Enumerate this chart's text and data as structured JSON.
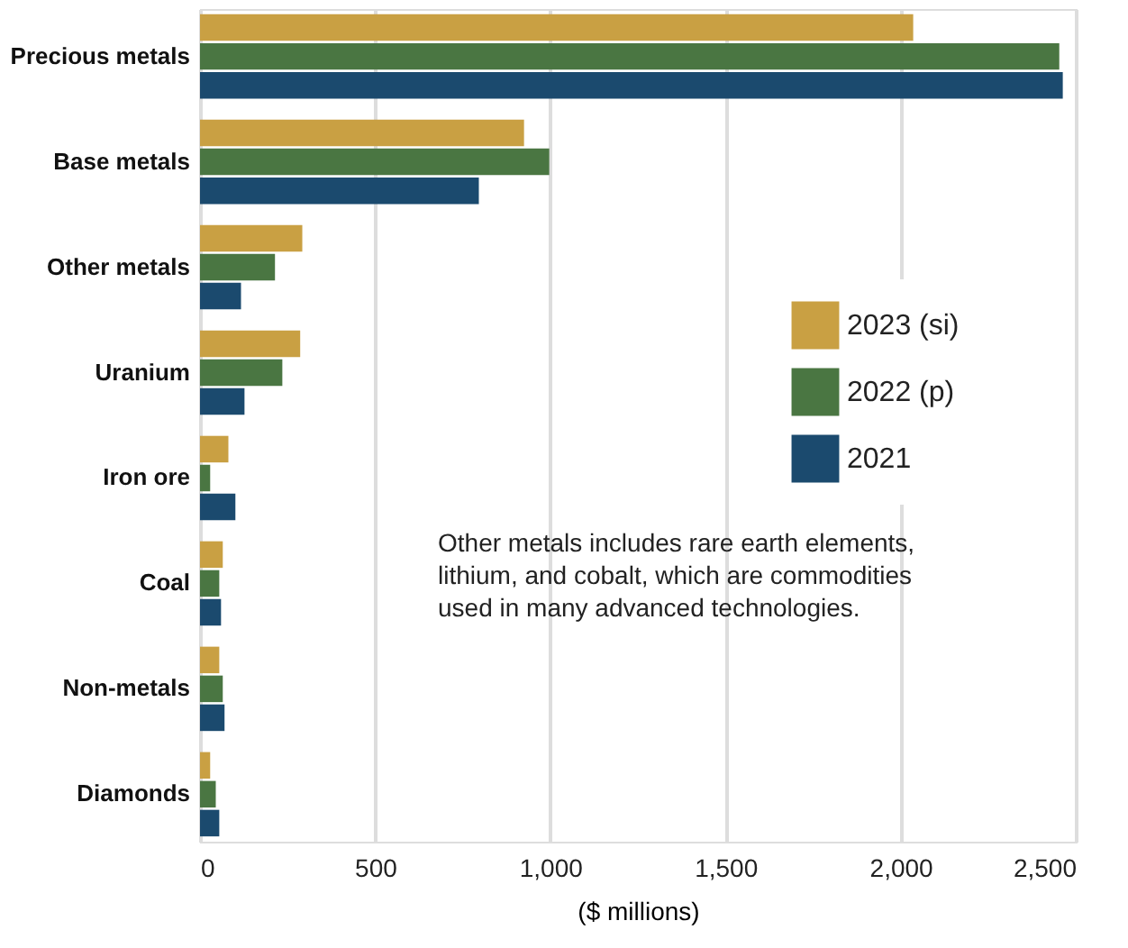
{
  "chart_data": {
    "type": "bar",
    "orientation": "horizontal",
    "xlabel": "($ millions)",
    "categories": [
      "Precious metals",
      "Base metals",
      "Other metals",
      "Uranium",
      "Iron ore",
      "Coal",
      "Non-metals",
      "Diamonds"
    ],
    "series": [
      {
        "name": "2023 (si)",
        "color": "#c9a043",
        "values": [
          2036,
          925,
          292,
          286,
          81,
          65,
          55,
          29
        ]
      },
      {
        "name": "2022 (p)",
        "color": "#4a7642",
        "values": [
          2453,
          997,
          214,
          235,
          29,
          55,
          65,
          45
        ]
      },
      {
        "name": "2021",
        "color": "#1b4a6e",
        "values": [
          2463,
          796,
          117,
          127,
          101,
          60,
          70,
          55
        ]
      }
    ],
    "xlim": [
      0,
      2500
    ],
    "xticks": [
      0,
      500,
      {
        "value": 1000,
        "label": "1,000"
      },
      {
        "value": 1500,
        "label": "1,500"
      },
      {
        "value": 2000,
        "label": "2,000"
      },
      {
        "value": 2500,
        "label": "2,500"
      }
    ],
    "grid": "x",
    "legend": "right",
    "annotations": [
      "Other metals includes rare earth elements, lithium, and cobalt, which are commodities used in many advanced technologies."
    ]
  }
}
